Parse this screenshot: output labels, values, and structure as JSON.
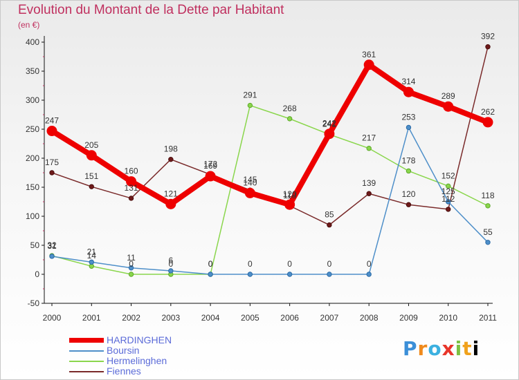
{
  "chart_data": {
    "type": "line",
    "title": "Evolution du Montant de la Dette par Habitant",
    "subtitle": "(en €)",
    "x": [
      "2000",
      "2001",
      "2002",
      "2003",
      "2004",
      "2005",
      "2006",
      "2007",
      "2008",
      "2009",
      "2010",
      "2011"
    ],
    "ylim": [
      -50,
      400
    ],
    "yticks": [
      -50,
      0,
      50,
      100,
      150,
      200,
      250,
      300,
      350,
      400
    ],
    "grid": false,
    "legend_position": "bottom-left",
    "series": [
      {
        "name": "HARDINGHEN",
        "color": "#ee0000",
        "values": [
          247,
          205,
          160,
          121,
          169,
          140,
          120,
          242,
          361,
          314,
          289,
          262
        ]
      },
      {
        "name": "Boursin",
        "color": "#4e8fc9",
        "values": [
          31,
          21,
          11,
          6,
          0,
          0,
          0,
          0,
          0,
          253,
          125,
          55
        ]
      },
      {
        "name": "Hermelinghen",
        "color": "#8ad64c",
        "values": [
          32,
          14,
          0,
          0,
          0,
          291,
          268,
          241,
          217,
          178,
          152,
          118
        ]
      },
      {
        "name": "Fiennes",
        "color": "#7a2a2a",
        "values": [
          175,
          151,
          131,
          198,
          172,
          145,
          118,
          85,
          139,
          120,
          112,
          392
        ]
      }
    ]
  },
  "logo": {
    "letters": [
      "P",
      "r",
      "o",
      "x",
      "i",
      "t",
      "i"
    ]
  }
}
